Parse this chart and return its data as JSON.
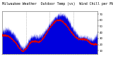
{
  "title": "Milwaukee Weather  Outdoor Temp (vs)  Wind Chill per Minute (Last 24 Hours)",
  "title_fontsize": 3.5,
  "title_color": "#000000",
  "bg_color": "#ffffff",
  "plot_bg_color": "#ffffff",
  "bar_color": "#0000dd",
  "line_color": "#dd0000",
  "grid_color": "#888888",
  "ylim": [
    5,
    75
  ],
  "yticks": [
    10,
    20,
    30,
    40,
    50,
    60,
    70
  ],
  "ytick_labels": [
    "10",
    "20",
    "30",
    "40",
    "50",
    "60",
    "70"
  ],
  "n_points": 1440,
  "n_grid_lines": 3,
  "figsize": [
    1.6,
    0.87
  ],
  "dpi": 100
}
